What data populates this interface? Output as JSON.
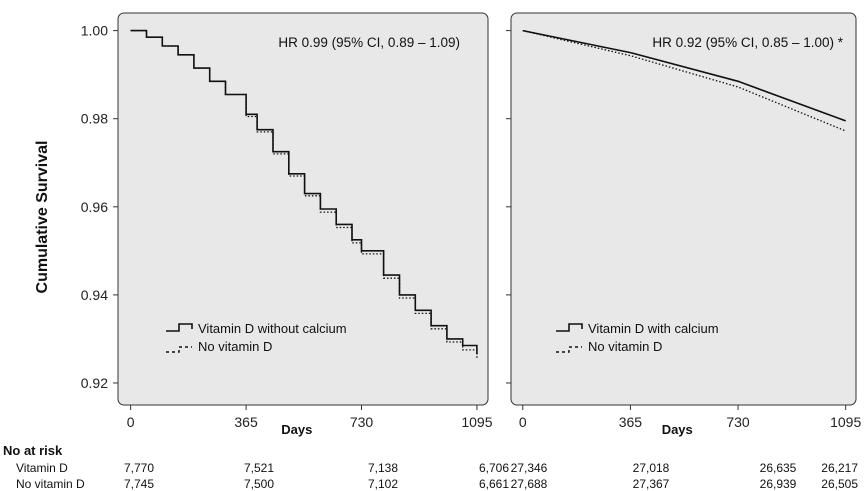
{
  "ylabel": "Cumulative Survival",
  "at_risk": {
    "heading": "No at risk",
    "row_labels": [
      "Vitamin D",
      "No vitamin D"
    ]
  },
  "chart_data": [
    {
      "type": "line",
      "xlabel": "Days",
      "xticks": [
        0,
        365,
        730,
        1095
      ],
      "xlim": [
        -40,
        1130
      ],
      "ylim": [
        0.915,
        1.004
      ],
      "yticks": [
        "1.00",
        "0.98",
        "0.96",
        "0.94",
        "0.92"
      ],
      "ytick_values": [
        1.0,
        0.98,
        0.96,
        0.94,
        0.92
      ],
      "grid": false,
      "background": "#e8e8e8",
      "annotation": "HR 0.99 (95% CI, 0.89 – 1.09)",
      "legend_position": "lower-left",
      "series": [
        {
          "name": "Vitamin D without calcium",
          "style": "solid",
          "x": [
            0,
            50,
            100,
            150,
            200,
            250,
            300,
            365,
            400,
            450,
            500,
            550,
            600,
            650,
            700,
            730,
            800,
            850,
            900,
            950,
            1000,
            1050,
            1095
          ],
          "y": [
            1.0,
            0.9985,
            0.9965,
            0.9945,
            0.9915,
            0.9885,
            0.9855,
            0.981,
            0.9775,
            0.9725,
            0.9675,
            0.963,
            0.9595,
            0.956,
            0.9525,
            0.95,
            0.9445,
            0.94,
            0.9365,
            0.933,
            0.93,
            0.9285,
            0.9265
          ]
        },
        {
          "name": "No vitamin D",
          "style": "dotted",
          "x": [
            0,
            50,
            100,
            150,
            200,
            250,
            300,
            365,
            400,
            450,
            500,
            550,
            600,
            650,
            700,
            730,
            800,
            850,
            900,
            950,
            1000,
            1050,
            1095
          ],
          "y": [
            1.0,
            0.9985,
            0.9965,
            0.9945,
            0.9915,
            0.9885,
            0.9855,
            0.9805,
            0.977,
            0.972,
            0.967,
            0.9625,
            0.9588,
            0.9553,
            0.9518,
            0.9493,
            0.9438,
            0.9393,
            0.9358,
            0.9323,
            0.9293,
            0.9275,
            0.9255
          ]
        }
      ],
      "at_risk": {
        "x": [
          0,
          365,
          730,
          1095
        ],
        "rows": [
          [
            "7,770",
            "7,521",
            "7,138",
            "6,706"
          ],
          [
            "7,745",
            "7,500",
            "7,102",
            "6,661"
          ]
        ]
      }
    },
    {
      "type": "line",
      "xlabel": "Days",
      "xticks": [
        0,
        365,
        730,
        1095
      ],
      "xlim": [
        -40,
        1130
      ],
      "ylim": [
        0.915,
        1.004
      ],
      "grid": false,
      "background": "#e8e8e8",
      "annotation": "HR 0.92 (95% CI, 0.85 – 1.00) *",
      "legend_position": "lower-left",
      "series": [
        {
          "name": "Vitamin D with calcium",
          "style": "solid",
          "x": [
            0,
            365,
            730,
            1095
          ],
          "y": [
            1.0,
            0.995,
            0.9885,
            0.9795
          ]
        },
        {
          "name": "No vitamin D",
          "style": "dotted",
          "x": [
            0,
            365,
            730,
            1095
          ],
          "y": [
            1.0,
            0.9943,
            0.9872,
            0.9772
          ]
        }
      ],
      "at_risk": {
        "x": [
          0,
          365,
          730,
          1095
        ],
        "rows": [
          [
            "27,346",
            "27,018",
            "26,635",
            "26,217"
          ],
          [
            "27,688",
            "27,367",
            "26,939",
            "26,505"
          ]
        ]
      }
    }
  ]
}
